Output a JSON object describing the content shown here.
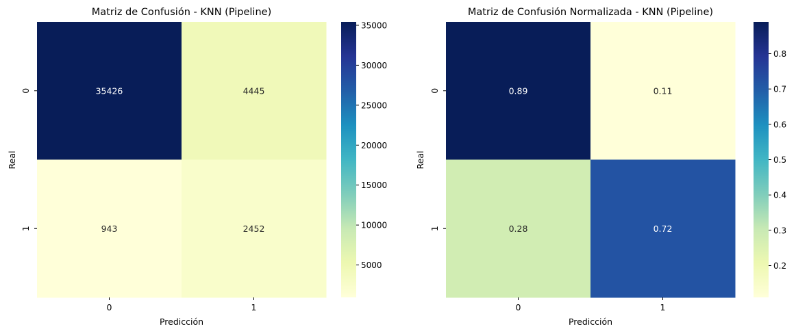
{
  "chart_data": [
    {
      "type": "heatmap",
      "title": "Matriz de Confusión - KNN (Pipeline)",
      "xlabel": "Predicción",
      "ylabel": "Real",
      "x_categories": [
        "0",
        "1"
      ],
      "y_categories": [
        "0",
        "1"
      ],
      "values": [
        [
          35426,
          4445
        ],
        [
          943,
          2452
        ]
      ],
      "value_labels": [
        [
          "35426",
          "4445"
        ],
        [
          "943",
          "2452"
        ]
      ],
      "colormap": "YlGnBu",
      "colorbar": {
        "min": 943,
        "max": 35426,
        "ticks": [
          5000,
          10000,
          15000,
          20000,
          25000,
          30000,
          35000
        ],
        "tick_labels": [
          "5000",
          "10000",
          "15000",
          "20000",
          "25000",
          "30000",
          "35000"
        ]
      }
    },
    {
      "type": "heatmap",
      "title": "Matriz de Confusión Normalizada - KNN (Pipeline)",
      "xlabel": "Predicción",
      "ylabel": "Real",
      "x_categories": [
        "0",
        "1"
      ],
      "y_categories": [
        "0",
        "1"
      ],
      "values": [
        [
          0.89,
          0.11
        ],
        [
          0.28,
          0.72
        ]
      ],
      "value_labels": [
        [
          "0.89",
          "0.11"
        ],
        [
          "0.28",
          "0.72"
        ]
      ],
      "colormap": "YlGnBu",
      "colorbar": {
        "min": 0.11,
        "max": 0.89,
        "ticks": [
          0.2,
          0.3,
          0.4,
          0.5,
          0.6,
          0.7,
          0.8
        ],
        "tick_labels": [
          "0.2",
          "0.3",
          "0.4",
          "0.5",
          "0.6",
          "0.7",
          "0.8"
        ]
      }
    }
  ]
}
